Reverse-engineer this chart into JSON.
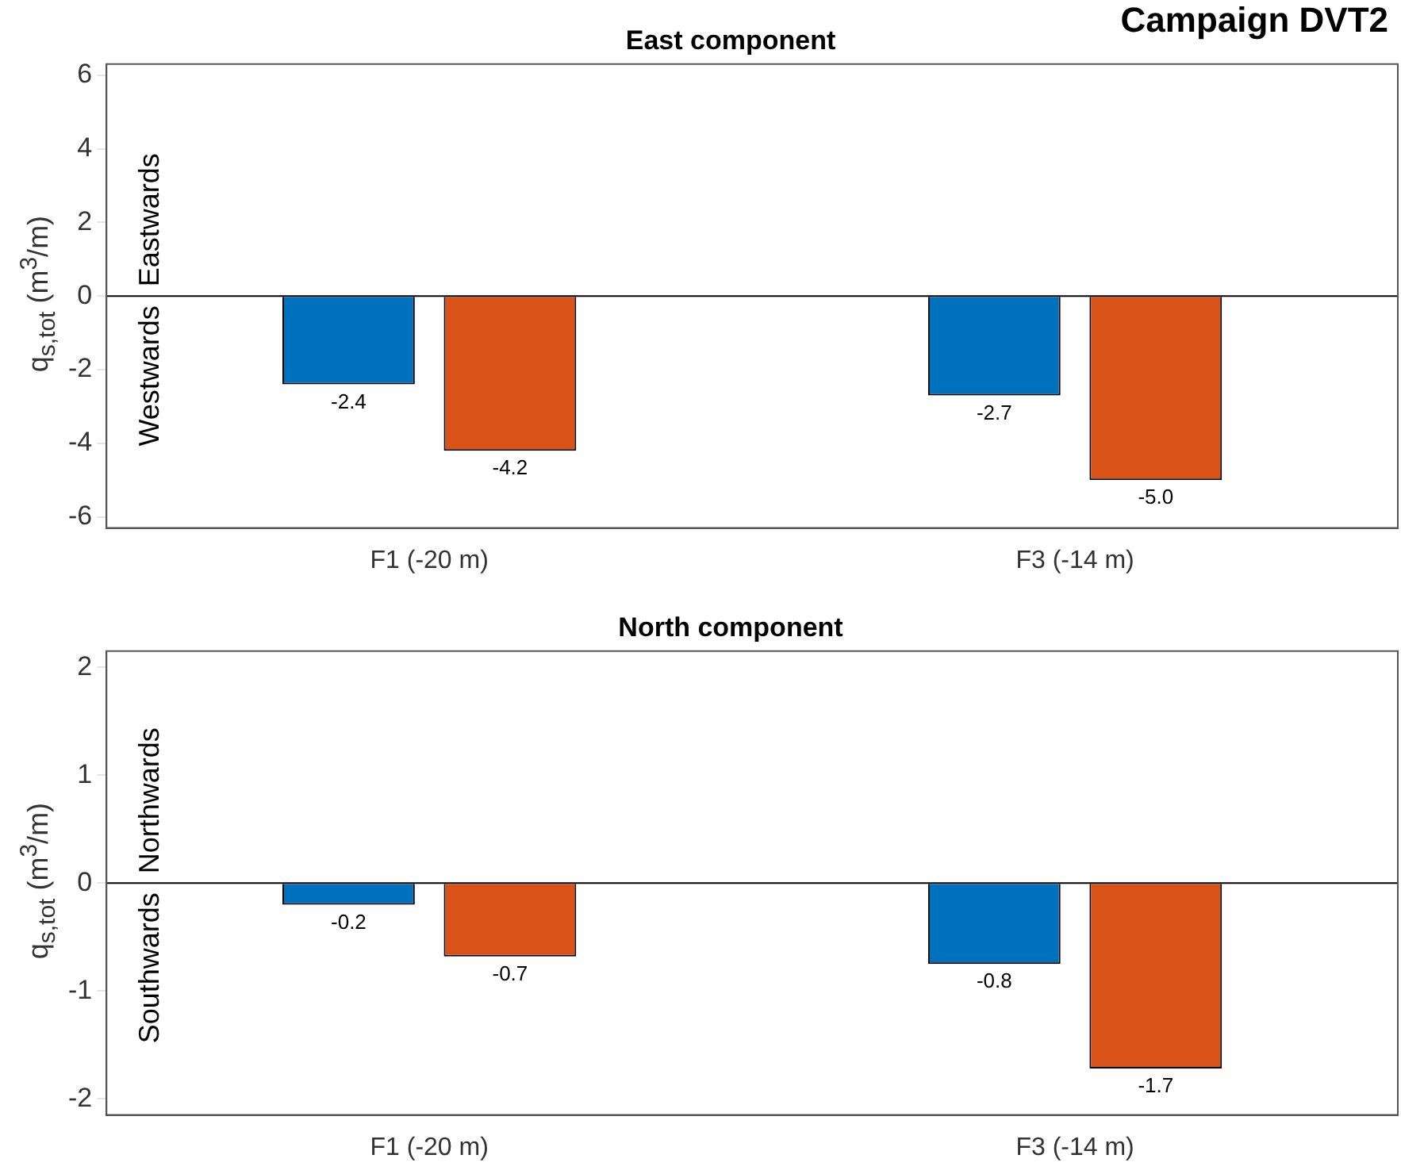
{
  "chart_data": [
    {
      "type": "bar",
      "title": "East component",
      "subtitle": "Campaign DVT2",
      "ylabel": "q$_{s,tot}$ (m$^{3}$/m)",
      "categories": [
        "F1 (-20 m)",
        "F3 (-14 m)"
      ],
      "series": [
        {
          "color": "#0072bd",
          "values": [
            -2.4,
            -2.7
          ],
          "value_labels": [
            "-2.4",
            "-2.7"
          ]
        },
        {
          "color": "#d95319",
          "values": [
            -4.2,
            -5.0
          ],
          "value_labels": [
            "-4.2",
            "-5.0"
          ]
        }
      ],
      "ylim": [
        -6.3,
        6.3
      ],
      "yticks": [
        -6,
        -4,
        -2,
        0,
        2,
        4,
        6
      ],
      "grid": false,
      "legend": false,
      "ref_lines": [
        {
          "axis": "y",
          "value": 0,
          "color": "#000000"
        }
      ],
      "annotations": [
        "Eastwards",
        "Westwards"
      ]
    },
    {
      "type": "bar",
      "title": "North component",
      "ylabel": "q$_{s,tot}$ (m$^{3}$/m)",
      "categories": [
        "F1 (-20 m)",
        "F3 (-14 m)"
      ],
      "series": [
        {
          "color": "#0072bd",
          "values": [
            -0.2,
            -0.75
          ],
          "value_labels": [
            "-0.2",
            "-0.8"
          ]
        },
        {
          "color": "#d95319",
          "values": [
            -0.68,
            -1.72
          ],
          "value_labels": [
            "-0.7",
            "-1.7"
          ]
        }
      ],
      "ylim": [
        -2.15,
        2.15
      ],
      "yticks": [
        -2,
        -1,
        0,
        1,
        2
      ],
      "grid": false,
      "legend": false,
      "ref_lines": [
        {
          "axis": "y",
          "value": 0,
          "color": "#000000"
        }
      ],
      "annotations": [
        "Northwards",
        "Southwards"
      ]
    }
  ]
}
